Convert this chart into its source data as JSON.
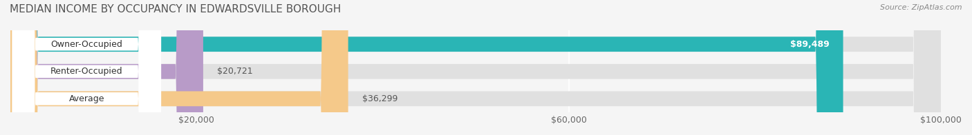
{
  "title": "MEDIAN INCOME BY OCCUPANCY IN EDWARDSVILLE BOROUGH",
  "source": "Source: ZipAtlas.com",
  "categories": [
    "Owner-Occupied",
    "Renter-Occupied",
    "Average"
  ],
  "values": [
    89489,
    20721,
    36299
  ],
  "labels": [
    "$89,489",
    "$20,721",
    "$36,299"
  ],
  "bar_colors": [
    "#2ab5b5",
    "#b89bc8",
    "#f5c98a"
  ],
  "bar_background": [
    "#e8e8e8",
    "#e8e8e8",
    "#e8e8e8"
  ],
  "xlim": [
    0,
    100000
  ],
  "xticks": [
    20000,
    60000,
    100000
  ],
  "xticklabels": [
    "$20,000",
    "$60,000",
    "$100,000"
  ],
  "figsize": [
    14.06,
    1.96
  ],
  "dpi": 100,
  "title_fontsize": 11,
  "label_fontsize": 9,
  "source_fontsize": 8,
  "bar_height": 0.55,
  "background_color": "#f5f5f5"
}
